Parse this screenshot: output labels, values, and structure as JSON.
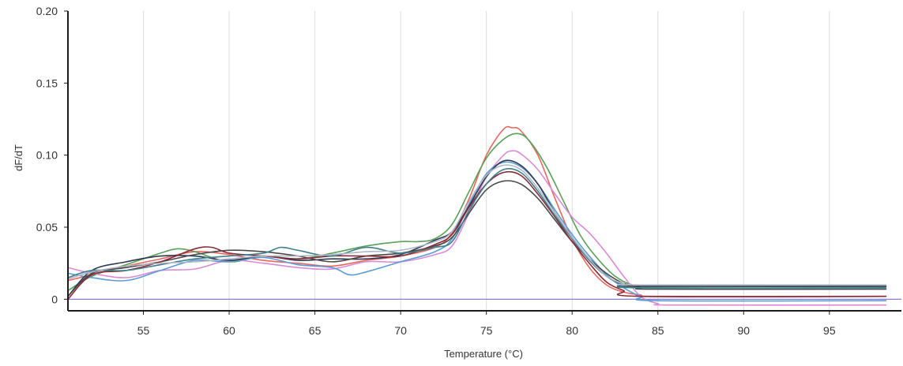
{
  "chart_data": {
    "type": "line",
    "xlabel": "Temperature (°C)",
    "ylabel": "dF/dT",
    "xlim": [
      50.6,
      99.2
    ],
    "ylim": [
      -0.008,
      0.2
    ],
    "x_ticks": [
      55,
      60,
      65,
      70,
      75,
      80,
      85,
      90,
      95
    ],
    "x_tick_labels": [
      "55",
      "60",
      "65",
      "70",
      "75",
      "80",
      "85",
      "90",
      "95"
    ],
    "y_ticks": [
      0,
      0.05,
      0.1,
      0.15,
      0.2
    ],
    "y_tick_labels": [
      "0",
      "0.05",
      "0.10",
      "0.15",
      "0.20"
    ],
    "grid": {
      "vertical": true,
      "horizontal": false
    },
    "baseline": {
      "y": 0,
      "color": "#8a7fd0"
    },
    "series": [
      {
        "color": "#e8675c",
        "points": [
          [
            50.6,
            0.013
          ],
          [
            52,
            0.017
          ],
          [
            54,
            0.023
          ],
          [
            56,
            0.028
          ],
          [
            58,
            0.033
          ],
          [
            60,
            0.031
          ],
          [
            62,
            0.027
          ],
          [
            64,
            0.025
          ],
          [
            66,
            0.023
          ],
          [
            68,
            0.027
          ],
          [
            70,
            0.03
          ],
          [
            72,
            0.036
          ],
          [
            73,
            0.046
          ],
          [
            74,
            0.07
          ],
          [
            75,
            0.1
          ],
          [
            76,
            0.118
          ],
          [
            76.5,
            0.119
          ],
          [
            77,
            0.117
          ],
          [
            78,
            0.1
          ],
          [
            79,
            0.07
          ],
          [
            80,
            0.042
          ],
          [
            81,
            0.022
          ],
          [
            82,
            0.01
          ],
          [
            83,
            0.005
          ],
          [
            84,
            0.003
          ],
          [
            85,
            0.002
          ],
          [
            98.3,
            0.002
          ]
        ]
      },
      {
        "color": "#5aa05a",
        "points": [
          [
            50.6,
            0.006
          ],
          [
            52,
            0.016
          ],
          [
            54,
            0.024
          ],
          [
            56,
            0.032
          ],
          [
            57,
            0.035
          ],
          [
            58,
            0.033
          ],
          [
            60,
            0.026
          ],
          [
            62,
            0.03
          ],
          [
            64,
            0.028
          ],
          [
            66,
            0.032
          ],
          [
            68,
            0.037
          ],
          [
            70,
            0.04
          ],
          [
            71,
            0.04
          ],
          [
            72,
            0.042
          ],
          [
            73,
            0.052
          ],
          [
            74,
            0.075
          ],
          [
            75,
            0.098
          ],
          [
            76,
            0.111
          ],
          [
            76.8,
            0.115
          ],
          [
            77.5,
            0.11
          ],
          [
            78.5,
            0.092
          ],
          [
            79.5,
            0.068
          ],
          [
            80.5,
            0.044
          ],
          [
            81.5,
            0.028
          ],
          [
            82.5,
            0.016
          ],
          [
            83.5,
            0.01
          ],
          [
            84.5,
            0.009
          ],
          [
            98.3,
            0.009
          ]
        ]
      },
      {
        "color": "#d98ad6",
        "points": [
          [
            50.6,
            0.022
          ],
          [
            52,
            0.018
          ],
          [
            54,
            0.015
          ],
          [
            56,
            0.02
          ],
          [
            58,
            0.021
          ],
          [
            60,
            0.027
          ],
          [
            62,
            0.025
          ],
          [
            64,
            0.022
          ],
          [
            66,
            0.021
          ],
          [
            68,
            0.026
          ],
          [
            70,
            0.026
          ],
          [
            72,
            0.031
          ],
          [
            73,
            0.037
          ],
          [
            74,
            0.06
          ],
          [
            75,
            0.085
          ],
          [
            76,
            0.1
          ],
          [
            76.5,
            0.103
          ],
          [
            77,
            0.101
          ],
          [
            78,
            0.09
          ],
          [
            79,
            0.073
          ],
          [
            80,
            0.057
          ],
          [
            81,
            0.046
          ],
          [
            82,
            0.032
          ],
          [
            83,
            0.016
          ],
          [
            84,
            0.002
          ],
          [
            85,
            -0.003
          ],
          [
            86,
            -0.004
          ],
          [
            98.3,
            -0.004
          ]
        ]
      },
      {
        "color": "#5b9bd5",
        "points": [
          [
            50.6,
            0.018
          ],
          [
            52,
            0.015
          ],
          [
            54,
            0.013
          ],
          [
            56,
            0.02
          ],
          [
            58,
            0.027
          ],
          [
            60,
            0.026
          ],
          [
            62,
            0.029
          ],
          [
            64,
            0.024
          ],
          [
            66,
            0.022
          ],
          [
            67,
            0.017
          ],
          [
            68,
            0.019
          ],
          [
            70,
            0.026
          ],
          [
            72,
            0.033
          ],
          [
            73,
            0.042
          ],
          [
            74,
            0.066
          ],
          [
            75,
            0.087
          ],
          [
            76,
            0.095
          ],
          [
            77,
            0.092
          ],
          [
            78,
            0.08
          ],
          [
            79,
            0.062
          ],
          [
            80,
            0.045
          ],
          [
            81,
            0.03
          ],
          [
            82,
            0.017
          ],
          [
            83,
            0.008
          ],
          [
            84,
            0.002
          ],
          [
            85,
            -0.001
          ],
          [
            98.3,
            -0.001
          ]
        ]
      },
      {
        "color": "#2f3a52",
        "points": [
          [
            50.6,
            0.002
          ],
          [
            52,
            0.02
          ],
          [
            54,
            0.026
          ],
          [
            56,
            0.03
          ],
          [
            58,
            0.03
          ],
          [
            60,
            0.027
          ],
          [
            62,
            0.03
          ],
          [
            64,
            0.027
          ],
          [
            66,
            0.028
          ],
          [
            68,
            0.028
          ],
          [
            70,
            0.031
          ],
          [
            72,
            0.041
          ],
          [
            73,
            0.047
          ],
          [
            74,
            0.065
          ],
          [
            75,
            0.085
          ],
          [
            76,
            0.096
          ],
          [
            77,
            0.093
          ],
          [
            78,
            0.08
          ],
          [
            79,
            0.06
          ],
          [
            80,
            0.043
          ],
          [
            81,
            0.028
          ],
          [
            82,
            0.016
          ],
          [
            83,
            0.01
          ],
          [
            84,
            0.009
          ],
          [
            98.3,
            0.009
          ]
        ]
      },
      {
        "color": "#4a4a4a",
        "points": [
          [
            50.6,
            0.002
          ],
          [
            52,
            0.018
          ],
          [
            54,
            0.022
          ],
          [
            56,
            0.026
          ],
          [
            58,
            0.031
          ],
          [
            60,
            0.034
          ],
          [
            62,
            0.033
          ],
          [
            64,
            0.03
          ],
          [
            66,
            0.026
          ],
          [
            68,
            0.03
          ],
          [
            70,
            0.032
          ],
          [
            72,
            0.037
          ],
          [
            73,
            0.043
          ],
          [
            74,
            0.06
          ],
          [
            75,
            0.076
          ],
          [
            76,
            0.082
          ],
          [
            77,
            0.08
          ],
          [
            78,
            0.07
          ],
          [
            79,
            0.055
          ],
          [
            80,
            0.04
          ],
          [
            81,
            0.028
          ],
          [
            82,
            0.018
          ],
          [
            83,
            0.011
          ],
          [
            84,
            0.008
          ],
          [
            85,
            0.007
          ],
          [
            98.3,
            0.007
          ]
        ]
      },
      {
        "color": "#8b2a3a",
        "points": [
          [
            50.6,
            0.0
          ],
          [
            52,
            0.017
          ],
          [
            54,
            0.02
          ],
          [
            56,
            0.026
          ],
          [
            58,
            0.035
          ],
          [
            59,
            0.036
          ],
          [
            60,
            0.032
          ],
          [
            62,
            0.03
          ],
          [
            64,
            0.028
          ],
          [
            66,
            0.03
          ],
          [
            68,
            0.03
          ],
          [
            70,
            0.03
          ],
          [
            72,
            0.038
          ],
          [
            73,
            0.045
          ],
          [
            74,
            0.064
          ],
          [
            75,
            0.08
          ],
          [
            76,
            0.088
          ],
          [
            77,
            0.086
          ],
          [
            78,
            0.073
          ],
          [
            79,
            0.057
          ],
          [
            80,
            0.04
          ],
          [
            81,
            0.025
          ],
          [
            82,
            0.012
          ],
          [
            83,
            0.006
          ],
          [
            84,
            0.002
          ],
          [
            98.3,
            0.002
          ]
        ]
      },
      {
        "color": "#3f7f8c",
        "points": [
          [
            50.6,
            0.015
          ],
          [
            52,
            0.02
          ],
          [
            54,
            0.02
          ],
          [
            56,
            0.024
          ],
          [
            58,
            0.028
          ],
          [
            60,
            0.03
          ],
          [
            62,
            0.032
          ],
          [
            63,
            0.036
          ],
          [
            64,
            0.034
          ],
          [
            66,
            0.03
          ],
          [
            68,
            0.036
          ],
          [
            70,
            0.032
          ],
          [
            72,
            0.036
          ],
          [
            73,
            0.04
          ],
          [
            74,
            0.062
          ],
          [
            75,
            0.08
          ],
          [
            76,
            0.09
          ],
          [
            77,
            0.088
          ],
          [
            78,
            0.075
          ],
          [
            79,
            0.058
          ],
          [
            80,
            0.042
          ],
          [
            81,
            0.027
          ],
          [
            82,
            0.016
          ],
          [
            83,
            0.01
          ],
          [
            84,
            0.008
          ],
          [
            98.3,
            0.008
          ]
        ]
      },
      {
        "color": "#b0b8c6",
        "points": [
          [
            50.6,
            0.014
          ],
          [
            52,
            0.019
          ],
          [
            54,
            0.023
          ],
          [
            56,
            0.025
          ],
          [
            58,
            0.026
          ],
          [
            60,
            0.028
          ],
          [
            62,
            0.03
          ],
          [
            64,
            0.03
          ],
          [
            66,
            0.031
          ],
          [
            68,
            0.033
          ],
          [
            70,
            0.034
          ],
          [
            72,
            0.04
          ],
          [
            73,
            0.047
          ],
          [
            74,
            0.068
          ],
          [
            75,
            0.086
          ],
          [
            76,
            0.093
          ],
          [
            77,
            0.09
          ],
          [
            78,
            0.077
          ],
          [
            79,
            0.06
          ],
          [
            80,
            0.043
          ],
          [
            81,
            0.028
          ],
          [
            82,
            0.016
          ],
          [
            83,
            0.011
          ],
          [
            84,
            0.01
          ],
          [
            98.3,
            0.01
          ]
        ]
      }
    ]
  }
}
